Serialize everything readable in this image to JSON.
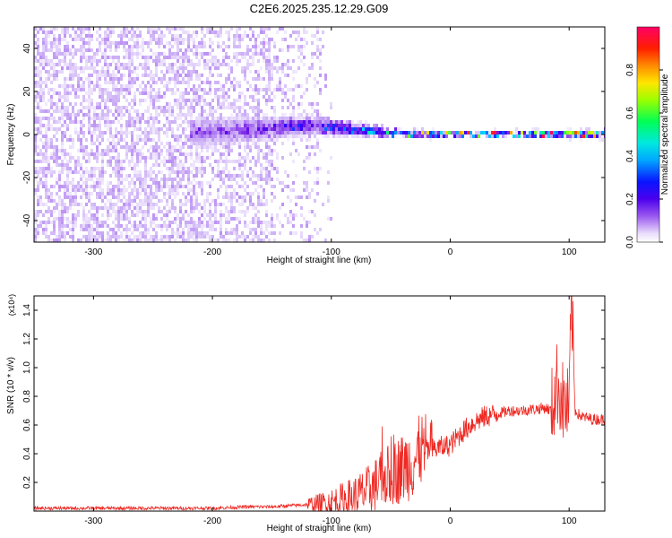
{
  "title": "C2E6.2025.235.12.29.G09",
  "colors": {
    "snr_line": "#ee2a24",
    "axis": "#000000",
    "background": "#ffffff",
    "spectrogram_palette": [
      "#ffffff",
      "#e9ddfb",
      "#c7a6f5",
      "#9b59ef",
      "#6a10e6",
      "#2f00ff",
      "#0077ff",
      "#00d8ff",
      "#00ff66",
      "#c8ff00",
      "#ffcc00",
      "#ff3300",
      "#ff0066"
    ]
  },
  "chart_data": [
    {
      "type": "heatmap",
      "xlabel": "Height of straight line (km)",
      "ylabel": "Frequency (Hz)",
      "xlim": [
        -350,
        130
      ],
      "ylim": [
        -50,
        50
      ],
      "xticks": [
        -300,
        -200,
        -100,
        0,
        100
      ],
      "xtick_labels": [
        "-300",
        "-200",
        "-100",
        "0",
        "100"
      ],
      "yticks": [
        -40,
        -20,
        0,
        20,
        40
      ],
      "ytick_labels": [
        "-40",
        "-20",
        "0",
        "20",
        "40"
      ],
      "colorbar": {
        "label": "Normalized spectral amplitude",
        "range": [
          0,
          1
        ],
        "ticks": [
          0.0,
          0.2,
          0.4,
          0.6,
          0.8
        ],
        "tick_labels": [
          "0.0",
          "0.2",
          "0.4",
          "0.6",
          "0.8"
        ]
      },
      "signal_track": {
        "description_points_x": [
          -200,
          -150,
          -120,
          -100,
          -80,
          -60,
          -40,
          -20,
          0,
          50,
          100,
          130
        ],
        "center_freq": [
          2,
          4,
          5,
          4,
          3,
          2,
          1,
          1,
          1,
          1,
          1,
          1
        ],
        "half_width": [
          8,
          7,
          5,
          5,
          4,
          3,
          2,
          2,
          1.5,
          1.5,
          2,
          2
        ],
        "peak_amplitude": [
          0.3,
          0.35,
          0.45,
          0.5,
          0.55,
          0.6,
          0.7,
          0.8,
          0.85,
          0.85,
          0.9,
          0.85
        ]
      },
      "noise_region": {
        "x_start": -350,
        "x_end": -100,
        "density": "decreasing"
      }
    },
    {
      "type": "line",
      "xlabel": "Height of straight line (km)",
      "ylabel": "SNR (10 * v/v)",
      "y_multiplier": "(x10⁴)",
      "xlim": [
        -350,
        130
      ],
      "ylim": [
        0,
        1.5
      ],
      "xticks": [
        -300,
        -200,
        -100,
        0,
        100
      ],
      "xtick_labels": [
        "-300",
        "-200",
        "-100",
        "0",
        "100"
      ],
      "yticks": [
        0.2,
        0.4,
        0.6,
        0.8,
        1.0,
        1.2,
        1.4
      ],
      "ytick_labels": [
        "0.2",
        "0.4",
        "0.6",
        "0.8",
        "1.0",
        "1.2",
        "1.4"
      ],
      "series": [
        {
          "x": [
            -350,
            -300,
            -250,
            -200,
            -170,
            -150,
            -130,
            -110,
            -100,
            -90,
            -80,
            -70,
            -60,
            -50,
            -40,
            -30,
            -20,
            -10,
            0,
            10,
            20,
            30,
            40,
            50,
            60,
            70,
            80,
            85,
            90,
            95,
            100,
            102,
            105,
            110,
            120,
            130
          ],
          "y": [
            0.02,
            0.02,
            0.02,
            0.02,
            0.03,
            0.03,
            0.04,
            0.05,
            0.06,
            0.08,
            0.1,
            0.14,
            0.2,
            0.26,
            0.3,
            0.36,
            0.42,
            0.44,
            0.46,
            0.55,
            0.62,
            0.66,
            0.68,
            0.7,
            0.7,
            0.71,
            0.72,
            0.7,
            0.9,
            0.75,
            0.7,
            1.5,
            0.7,
            0.66,
            0.64,
            0.64
          ]
        }
      ]
    }
  ]
}
